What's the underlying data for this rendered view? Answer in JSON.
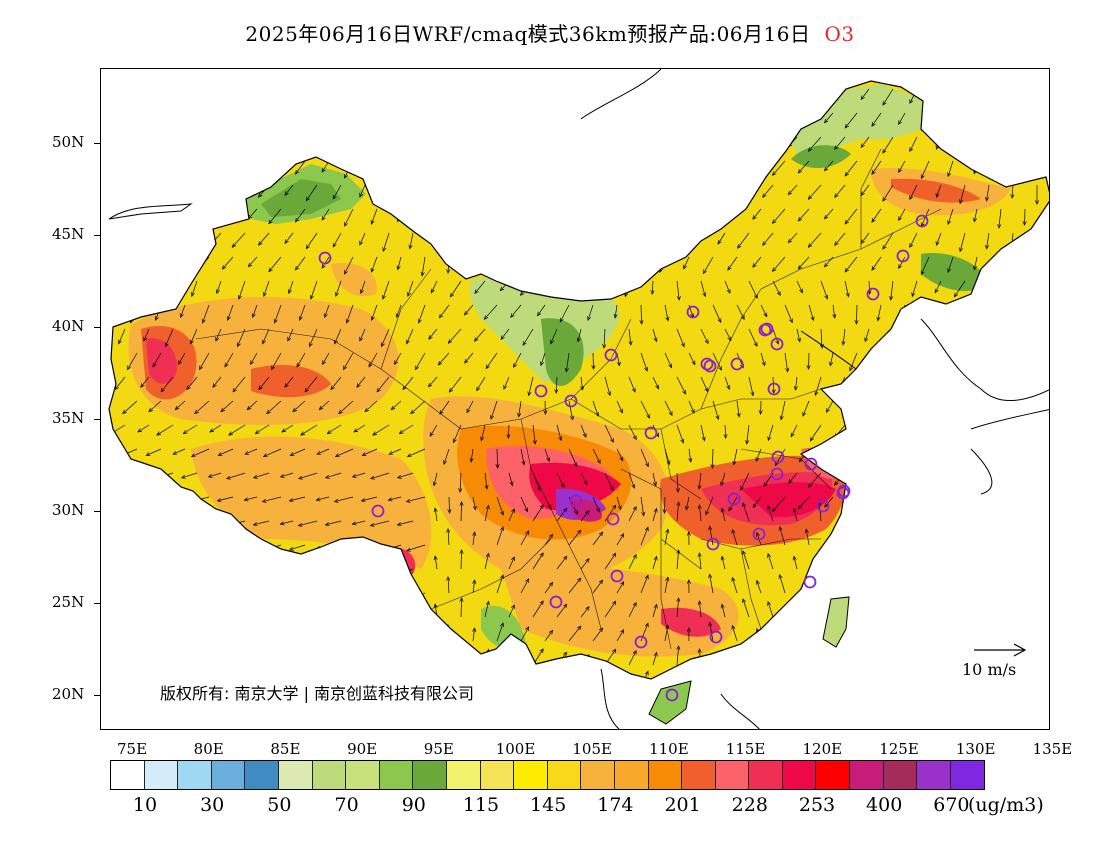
{
  "title": {
    "main": "2025年06月16日WRF/cmaq模式36km预报产品:06月16日",
    "species": "O3",
    "species_color": "#e8242a"
  },
  "map": {
    "lat_labels": [
      "50N",
      "45N",
      "40N",
      "35N",
      "30N",
      "25N",
      "20N"
    ],
    "lon_labels": [
      "75E",
      "80E",
      "85E",
      "90E",
      "95E",
      "100E",
      "105E",
      "110E",
      "115E",
      "120E",
      "125E",
      "130E",
      "135E"
    ],
    "copyright": "版权所有: 南京大学 | 南京创蓝科技有限公司",
    "wind_reference": "10 m/s",
    "station_marker_color": "#8a1fd6"
  },
  "legend": {
    "colors": [
      "#ffffff",
      "#d4ecf9",
      "#9ed8f3",
      "#6aaedc",
      "#3f8cc2",
      "#dbeab0",
      "#bddb7b",
      "#c7e27c",
      "#8cc74e",
      "#6aa83a",
      "#f2f36b",
      "#f4e257",
      "#fcec00",
      "#f7d919",
      "#f6b23d",
      "#f8a82a",
      "#f88b05",
      "#f0602d",
      "#fb6368",
      "#f02f54",
      "#ef0847",
      "#ff0000",
      "#c81c7b",
      "#a42c5a",
      "#9a31c9",
      "#8028e1"
    ],
    "labels": [
      "10",
      "30",
      "50",
      "70",
      "90",
      "115",
      "145",
      "174",
      "201",
      "228",
      "253",
      "400",
      "670"
    ],
    "unit": "(ug/m3)"
  }
}
